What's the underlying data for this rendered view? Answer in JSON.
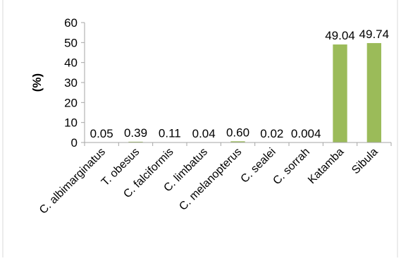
{
  "chart_data": {
    "type": "bar",
    "categories": [
      "C. albimarginatus",
      "T. obesus",
      "C. falciformis",
      "C. limbatus",
      "C. melanopterus",
      "C. sealei",
      "C. sorrah",
      "Katamba",
      "Sibula"
    ],
    "values": [
      0.05,
      0.39,
      0.11,
      0.04,
      0.6,
      0.02,
      0.004,
      49.04,
      49.74
    ],
    "data_labels": [
      "0.05",
      "0.39",
      "0.11",
      "0.04",
      "0.60",
      "0.02",
      "0.004",
      "49.04",
      "49.74"
    ],
    "y_ticks": [
      "0",
      "10",
      "20",
      "30",
      "40",
      "50",
      "60"
    ],
    "title": "",
    "xlabel": "",
    "ylabel": "(%)",
    "ylim": [
      0,
      60
    ],
    "grid": false,
    "legend": "none",
    "bar_color": "#9bbb59",
    "axis_color": "#a6a6a6"
  }
}
